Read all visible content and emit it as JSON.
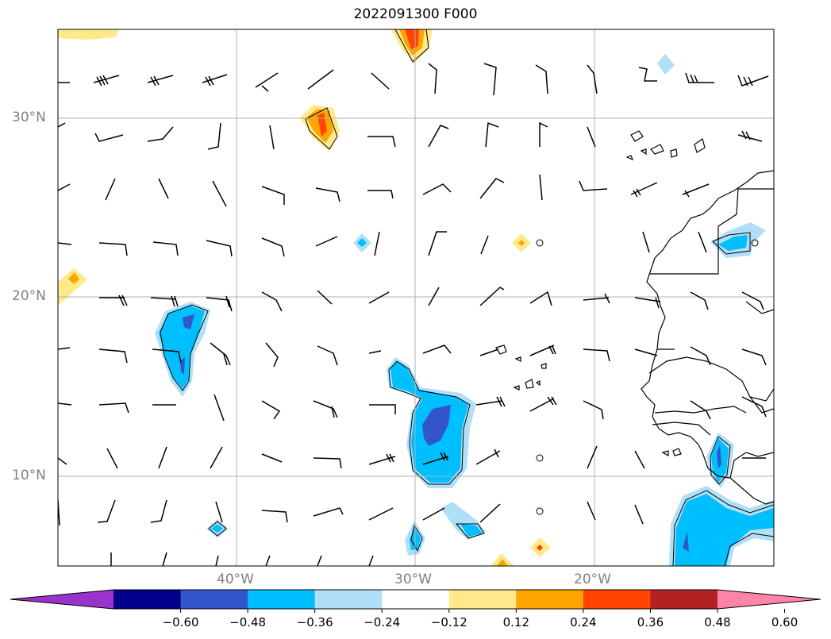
{
  "map": {
    "title": "2022091300 F000",
    "lat_labels": [
      "30°N",
      "20°N",
      "10°N"
    ],
    "lon_labels": [
      "40°W",
      "30°W",
      "20°W"
    ],
    "colors": {
      "grid": "#b0b0b0",
      "coastline": "#000000",
      "wind_barb": "#000000",
      "axis_label": "#808080"
    }
  },
  "colorbar": {
    "tick_labels": [
      "−0.60",
      "−0.48",
      "−0.36",
      "−0.24",
      "−0.12",
      "0.12",
      "0.24",
      "0.36",
      "0.48",
      "0.60"
    ],
    "colors": [
      "#9933cc",
      "#00008b",
      "#3355cc",
      "#00bfff",
      "#b0e0f8",
      "#ffffff",
      "#ffe98a",
      "#ffa500",
      "#ff4500",
      "#b22222",
      "#ff85a8"
    ]
  }
}
